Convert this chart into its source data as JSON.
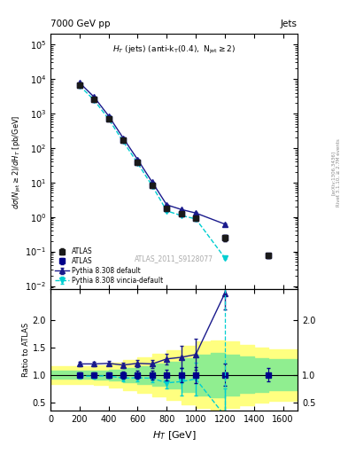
{
  "title_left": "7000 GeV pp",
  "title_right": "Jets",
  "watermark": "ATLAS_2011_S9128077",
  "xlabel": "H_{T} [GeV]",
  "ylabel": "d#sigma(N_{jet} >= 2) / dH_{T} [pb/GeV]",
  "ylabel_ratio": "Ratio to ATLAS",
  "xlim": [
    0,
    1700
  ],
  "ylim_main": [
    0.008,
    200000.0
  ],
  "ylim_ratio": [
    0.35,
    2.55
  ],
  "atlas_x": [
    200,
    300,
    400,
    500,
    600,
    700,
    800,
    900,
    1000,
    1200,
    1500
  ],
  "atlas_y": [
    6500,
    2500,
    700,
    165,
    38,
    8.5,
    1.75,
    1.25,
    0.95,
    0.25,
    0.075
  ],
  "atlas_yerr_lo": [
    300,
    100,
    40,
    10,
    3,
    0.6,
    0.15,
    0.15,
    0.12,
    0.05,
    0.01
  ],
  "atlas_yerr_hi": [
    300,
    100,
    40,
    10,
    3,
    0.6,
    0.15,
    0.15,
    0.12,
    0.05,
    0.01
  ],
  "atlas2_x": [
    200,
    300,
    400,
    500,
    600,
    700,
    800,
    900,
    1000,
    1200,
    1500
  ],
  "atlas2_y": [
    6500,
    2500,
    700,
    165,
    38,
    8.5,
    1.75,
    1.25,
    0.95,
    0.25,
    0.075
  ],
  "atlas2_yerr_lo": [
    300,
    100,
    40,
    10,
    3,
    0.6,
    0.15,
    0.15,
    0.12,
    0.05,
    0.01
  ],
  "atlas2_yerr_hi": [
    300,
    100,
    40,
    10,
    3,
    0.6,
    0.15,
    0.15,
    0.12,
    0.05,
    0.01
  ],
  "pythia_x": [
    200,
    300,
    400,
    500,
    600,
    700,
    800,
    900,
    1000,
    1200
  ],
  "pythia_y": [
    7800,
    3000,
    850,
    195,
    46,
    10.2,
    2.25,
    1.65,
    1.3,
    0.62
  ],
  "pythia_yerr": [
    200,
    80,
    25,
    6,
    1.5,
    0.35,
    0.08,
    0.07,
    0.06,
    0.04
  ],
  "vincia_x": [
    200,
    300,
    400,
    500,
    600,
    700,
    800,
    900,
    1000,
    1200
  ],
  "vincia_y": [
    6400,
    2450,
    690,
    155,
    36,
    8.0,
    1.5,
    1.1,
    0.88,
    0.065
  ],
  "vincia_yerr": [
    200,
    80,
    25,
    6,
    1.5,
    0.35,
    0.08,
    0.07,
    0.06,
    0.005
  ],
  "ratio_atlas_x": [
    200,
    300,
    400,
    500,
    600,
    700,
    800,
    900,
    1000,
    1200,
    1500
  ],
  "ratio_atlas_y": [
    1.0,
    1.0,
    1.0,
    1.0,
    1.0,
    1.0,
    1.0,
    1.0,
    1.0,
    1.0,
    1.0
  ],
  "ratio_atlas_err": [
    0.04,
    0.04,
    0.05,
    0.06,
    0.07,
    0.08,
    0.1,
    0.13,
    0.14,
    0.2,
    0.12
  ],
  "ratio_pythia_x": [
    200,
    300,
    400,
    500,
    600,
    700,
    800,
    900,
    1000,
    1200
  ],
  "ratio_pythia_y": [
    1.2,
    1.2,
    1.21,
    1.18,
    1.21,
    1.2,
    1.29,
    1.32,
    1.37,
    2.48
  ],
  "ratio_pythia_err": [
    0.04,
    0.04,
    0.04,
    0.05,
    0.06,
    0.07,
    0.1,
    0.2,
    0.28,
    0.3
  ],
  "ratio_vincia_x": [
    200,
    300,
    400,
    500,
    600,
    700,
    800,
    900,
    1000,
    1200
  ],
  "ratio_vincia_y": [
    0.98,
    0.98,
    0.986,
    0.94,
    0.95,
    0.94,
    0.857,
    0.88,
    0.927,
    0.26
  ],
  "ratio_vincia_err": [
    0.04,
    0.04,
    0.04,
    0.05,
    0.06,
    0.07,
    0.1,
    0.25,
    0.3,
    0.5
  ],
  "green_band_x": [
    0,
    200,
    300,
    400,
    500,
    600,
    700,
    800,
    900,
    1000,
    1100,
    1200,
    1300,
    1400,
    1500,
    1600,
    1700
  ],
  "green_band_lo": [
    0.93,
    0.93,
    0.93,
    0.92,
    0.9,
    0.87,
    0.84,
    0.8,
    0.76,
    0.7,
    0.63,
    0.6,
    0.63,
    0.67,
    0.7,
    0.72,
    0.72
  ],
  "green_band_hi": [
    1.07,
    1.07,
    1.07,
    1.08,
    1.1,
    1.13,
    1.16,
    1.2,
    1.24,
    1.3,
    1.37,
    1.4,
    1.37,
    1.33,
    1.3,
    1.28,
    1.28
  ],
  "yellow_band_x": [
    0,
    200,
    300,
    400,
    500,
    600,
    700,
    800,
    900,
    1000,
    1100,
    1200,
    1300,
    1400,
    1500,
    1600,
    1700
  ],
  "yellow_band_lo": [
    0.84,
    0.84,
    0.84,
    0.82,
    0.78,
    0.73,
    0.68,
    0.62,
    0.55,
    0.47,
    0.4,
    0.37,
    0.4,
    0.45,
    0.5,
    0.54,
    0.54
  ],
  "yellow_band_hi": [
    1.16,
    1.16,
    1.16,
    1.18,
    1.22,
    1.27,
    1.32,
    1.38,
    1.45,
    1.53,
    1.6,
    1.63,
    1.6,
    1.55,
    1.5,
    1.46,
    1.46
  ],
  "vincia_vline_x": 1200,
  "color_atlas1": "#1a1a1a",
  "color_atlas2": "#00008b",
  "color_pythia": "#1a1a8c",
  "color_vincia": "#00ced1",
  "color_green": "#90ee90",
  "color_yellow": "#ffff80",
  "background_color": "#ffffff"
}
